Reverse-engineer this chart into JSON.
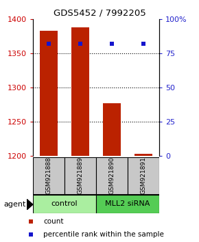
{
  "title": "GDS5452 / 7992205",
  "samples": [
    "GSM921888",
    "GSM921889",
    "GSM921890",
    "GSM921891"
  ],
  "bar_values": [
    1383,
    1388,
    1277,
    1203
  ],
  "percentile_values": [
    82,
    82,
    82,
    82
  ],
  "ylim_left": [
    1200,
    1400
  ],
  "ylim_right": [
    0,
    100
  ],
  "yticks_left": [
    1200,
    1250,
    1300,
    1350,
    1400
  ],
  "yticks_right": [
    0,
    25,
    50,
    75,
    100
  ],
  "bar_color": "#BB2200",
  "dot_color": "#1515CC",
  "label_color_left": "#CC0000",
  "label_color_right": "#2222CC",
  "legend_count_color": "#BB2200",
  "legend_pct_color": "#1515CC",
  "agent_label": "agent",
  "control_color": "#AAEEA0",
  "siRNA_color": "#55CC55",
  "sample_box_color": "#C8C8C8"
}
